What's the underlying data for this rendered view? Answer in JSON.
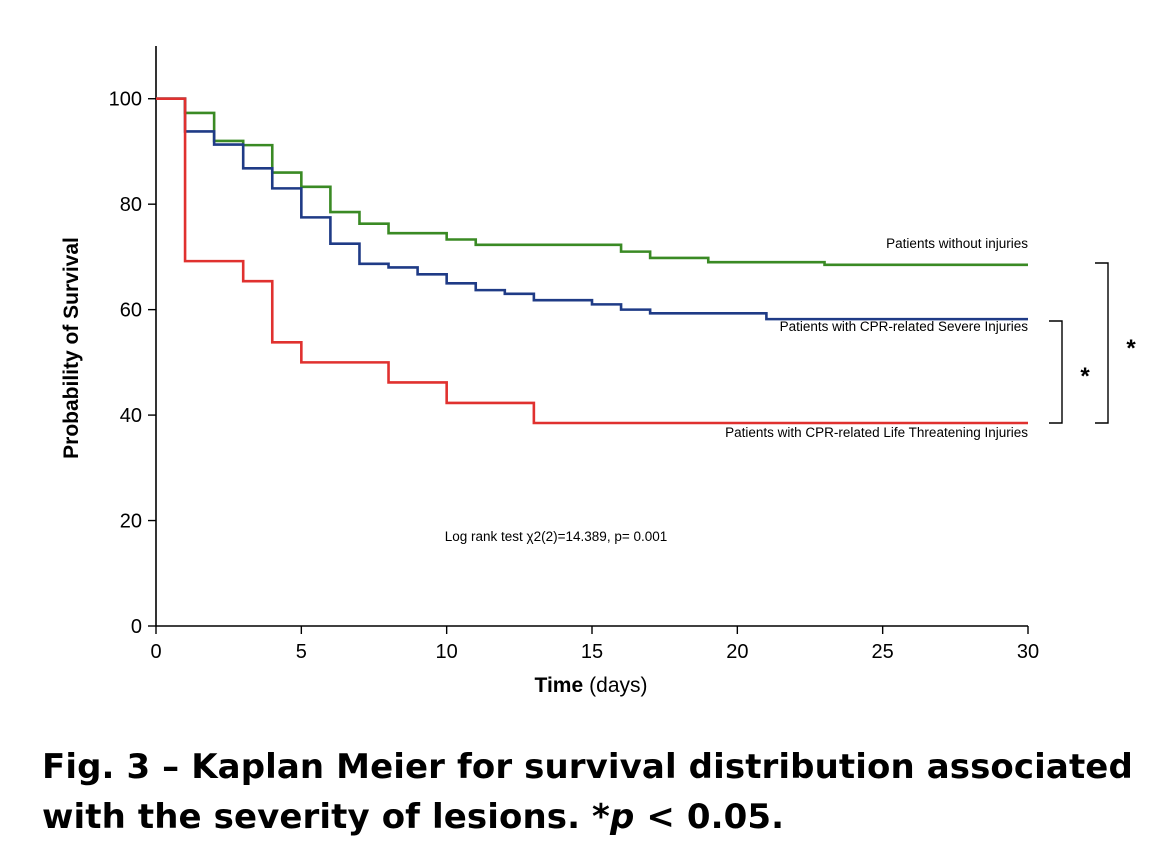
{
  "chart_data": {
    "type": "line",
    "step": true,
    "xlabel": "Time",
    "xlabel_unit": "(days)",
    "ylabel": "Probability of Survival",
    "xlim": [
      0,
      30
    ],
    "ylim": [
      0,
      110
    ],
    "xticks": [
      0,
      5,
      10,
      15,
      20,
      25,
      30
    ],
    "yticks": [
      0,
      20,
      40,
      60,
      80,
      100
    ],
    "grid": false,
    "annotation": "Log rank test χ2(2)=14.389, p= 0.001",
    "series": [
      {
        "name": "Patients without injuries",
        "color": "#3a8a24",
        "x": [
          0,
          1,
          2,
          3,
          4,
          5,
          6,
          7,
          8,
          10,
          11,
          16,
          17,
          19,
          23,
          30
        ],
        "y": [
          100,
          97.3,
          92.0,
          91.2,
          86.0,
          83.3,
          78.5,
          76.3,
          74.5,
          73.3,
          72.3,
          71.0,
          69.8,
          69.0,
          68.5,
          68.5
        ]
      },
      {
        "name": "Patients with CPR-related Severe Injuries",
        "color": "#1f3b86",
        "x": [
          0,
          1,
          2,
          3,
          4,
          5,
          6,
          7,
          8,
          9,
          10,
          11,
          12,
          13,
          15,
          16,
          17,
          21,
          30
        ],
        "y": [
          100,
          93.8,
          91.3,
          86.8,
          83.0,
          77.5,
          72.5,
          68.7,
          68.0,
          66.7,
          65.0,
          63.7,
          63.0,
          61.8,
          61.0,
          60.0,
          59.3,
          58.2,
          58.2
        ]
      },
      {
        "name": "Patients with CPR-related Life Threatening Injuries",
        "color": "#e0312f",
        "x": [
          0,
          1,
          3,
          4,
          5,
          8,
          10,
          13,
          30
        ],
        "y": [
          100,
          69.2,
          65.4,
          53.8,
          50.0,
          46.2,
          42.3,
          38.5,
          38.5
        ]
      }
    ],
    "significance_markers": [
      "*",
      "*"
    ]
  },
  "caption": {
    "line1": "Fig. 3 – Kaplan Meier for survival distribution associated",
    "line2_prefix": "with the severity of lesions. *",
    "line2_p": "p",
    "line2_suffix": " < 0.05."
  }
}
